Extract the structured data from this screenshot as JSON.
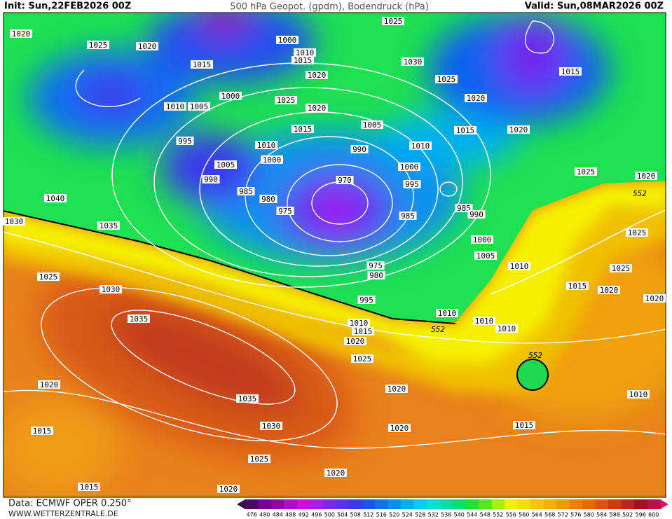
{
  "header": {
    "init": "Init: Sun,22FEB2026 00Z",
    "title": "500 hPa Geopot. (gpdm), Bodendruck (hPa)",
    "valid": "Valid: Sun,08MAR2026 00Z"
  },
  "footer": {
    "data_source": "Data: ECMWF OPER 0.250°",
    "website": "WWW.WETTERZENTRALE.DE"
  },
  "colorbar": {
    "labels": [
      476,
      480,
      484,
      488,
      492,
      496,
      500,
      504,
      508,
      512,
      516,
      520,
      524,
      528,
      532,
      536,
      540,
      544,
      548,
      552,
      556,
      560,
      564,
      568,
      572,
      576,
      580,
      584,
      588,
      592,
      596,
      600
    ]
  },
  "map": {
    "isobar_labels": [
      1020,
      1025,
      1020,
      1000,
      1010,
      1015,
      1025,
      1015,
      1030,
      1025,
      1015,
      1020,
      1000,
      1025,
      1010,
      1005,
      1020,
      1020,
      995,
      1015,
      1005,
      1015,
      1020,
      1010,
      990,
      1010,
      1000,
      1005,
      1000,
      1025,
      1020,
      990,
      970,
      995,
      985,
      980,
      985,
      990,
      975,
      985,
      1040,
      1030,
      1035,
      1000,
      1025,
      1005,
      975,
      1010,
      1025,
      980,
      1025,
      1015,
      1030,
      1020,
      1020,
      995,
      1010,
      1010,
      1010,
      1015,
      1010,
      1035,
      1020,
      1025,
      1020,
      1020,
      1010,
      1035,
      1015,
      1030,
      1020,
      1015,
      1025,
      1020,
      1015,
      1020
    ],
    "geopotential_labels": [
      552,
      552,
      552
    ]
  }
}
